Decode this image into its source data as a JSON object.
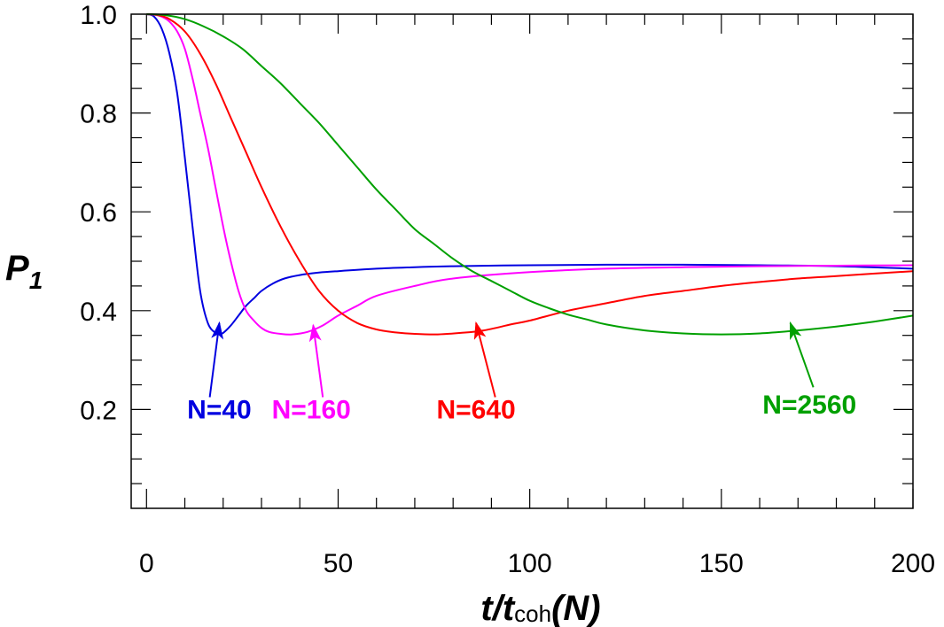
{
  "chart_data": {
    "type": "line",
    "xlabel": {
      "main": "t/t",
      "sub": "coh",
      "suffix": "(N)"
    },
    "ylabel": {
      "main": "P",
      "sub": "1"
    },
    "xlim": [
      -4,
      200
    ],
    "ylim": [
      0.0,
      1.0
    ],
    "xticks": [
      0,
      50,
      100,
      150,
      200
    ],
    "xtick_labels": [
      "0",
      "50",
      "100",
      "150",
      "200"
    ],
    "yticks": [
      0.2,
      0.4,
      0.6,
      0.8,
      1.0
    ],
    "ytick_labels": [
      "0.2",
      "0.4",
      "0.6",
      "0.8",
      "1.0"
    ],
    "grid": false,
    "series": [
      {
        "name": "N=40",
        "color": "#0000e0",
        "x": [
          0,
          2,
          4,
          6,
          8,
          10,
          12,
          14,
          16,
          18,
          19,
          20,
          22,
          24,
          26,
          28,
          30,
          33,
          36,
          40,
          45,
          50,
          60,
          70,
          80,
          100,
          120,
          140,
          160,
          180,
          200
        ],
        "y": [
          1.0,
          0.995,
          0.97,
          0.92,
          0.84,
          0.71,
          0.57,
          0.44,
          0.375,
          0.355,
          0.353,
          0.355,
          0.37,
          0.39,
          0.41,
          0.425,
          0.44,
          0.455,
          0.465,
          0.472,
          0.477,
          0.48,
          0.485,
          0.488,
          0.49,
          0.492,
          0.493,
          0.493,
          0.492,
          0.49,
          0.485
        ]
      },
      {
        "name": "N=160",
        "color": "#ff00ff",
        "x": [
          0,
          2,
          4,
          6,
          8,
          10,
          12,
          14,
          16,
          18,
          20,
          22,
          24,
          26,
          28,
          30,
          32,
          35,
          38,
          42,
          46,
          50,
          55,
          60,
          70,
          80,
          100,
          120,
          140,
          160,
          180,
          200
        ],
        "y": [
          1.0,
          0.999,
          0.995,
          0.985,
          0.965,
          0.93,
          0.87,
          0.8,
          0.73,
          0.65,
          0.57,
          0.5,
          0.44,
          0.4,
          0.38,
          0.365,
          0.357,
          0.353,
          0.352,
          0.357,
          0.37,
          0.39,
          0.41,
          0.43,
          0.45,
          0.465,
          0.478,
          0.485,
          0.488,
          0.49,
          0.491,
          0.492
        ]
      },
      {
        "name": "N=640",
        "color": "#ff0000",
        "x": [
          0,
          3,
          6,
          10,
          14,
          18,
          22,
          26,
          30,
          35,
          40,
          45,
          50,
          55,
          60,
          65,
          70,
          76,
          82,
          88,
          95,
          100,
          110,
          120,
          130,
          140,
          150,
          160,
          170,
          180,
          190,
          200
        ],
        "y": [
          1.0,
          0.998,
          0.99,
          0.965,
          0.92,
          0.86,
          0.79,
          0.72,
          0.65,
          0.57,
          0.5,
          0.44,
          0.4,
          0.375,
          0.362,
          0.356,
          0.353,
          0.352,
          0.355,
          0.36,
          0.372,
          0.38,
          0.4,
          0.415,
          0.43,
          0.44,
          0.45,
          0.458,
          0.465,
          0.47,
          0.475,
          0.48
        ]
      },
      {
        "name": "N=2560",
        "color": "#00a000",
        "x": [
          0,
          5,
          10,
          15,
          20,
          25,
          30,
          35,
          40,
          45,
          50,
          55,
          60,
          65,
          70,
          75,
          80,
          85,
          90,
          95,
          100,
          105,
          110,
          115,
          120,
          130,
          140,
          150,
          160,
          170,
          180,
          190,
          200
        ],
        "y": [
          1.0,
          0.998,
          0.99,
          0.975,
          0.955,
          0.93,
          0.895,
          0.86,
          0.82,
          0.78,
          0.735,
          0.69,
          0.645,
          0.605,
          0.565,
          0.535,
          0.505,
          0.48,
          0.46,
          0.44,
          0.42,
          0.405,
          0.392,
          0.382,
          0.372,
          0.36,
          0.354,
          0.352,
          0.354,
          0.36,
          0.368,
          0.378,
          0.39
        ]
      }
    ],
    "annotations": [
      {
        "text": "N=40",
        "color": "#0000e0",
        "label_x": 19,
        "label_y": 0.2,
        "arrow_from": [
          16.5,
          0.225
        ],
        "arrow_to": [
          19,
          0.375
        ]
      },
      {
        "text": "N=160",
        "color": "#ff00ff",
        "label_x": 43,
        "label_y": 0.2,
        "arrow_from": [
          46,
          0.225
        ],
        "arrow_to": [
          43.5,
          0.37
        ]
      },
      {
        "text": "N=640",
        "color": "#ff0000",
        "label_x": 86,
        "label_y": 0.2,
        "arrow_from": [
          91,
          0.225
        ],
        "arrow_to": [
          86,
          0.375
        ]
      },
      {
        "text": "N=2560",
        "color": "#00a000",
        "label_x": 173,
        "label_y": 0.21,
        "arrow_from": [
          174,
          0.245
        ],
        "arrow_to": [
          168,
          0.375
        ]
      }
    ]
  }
}
